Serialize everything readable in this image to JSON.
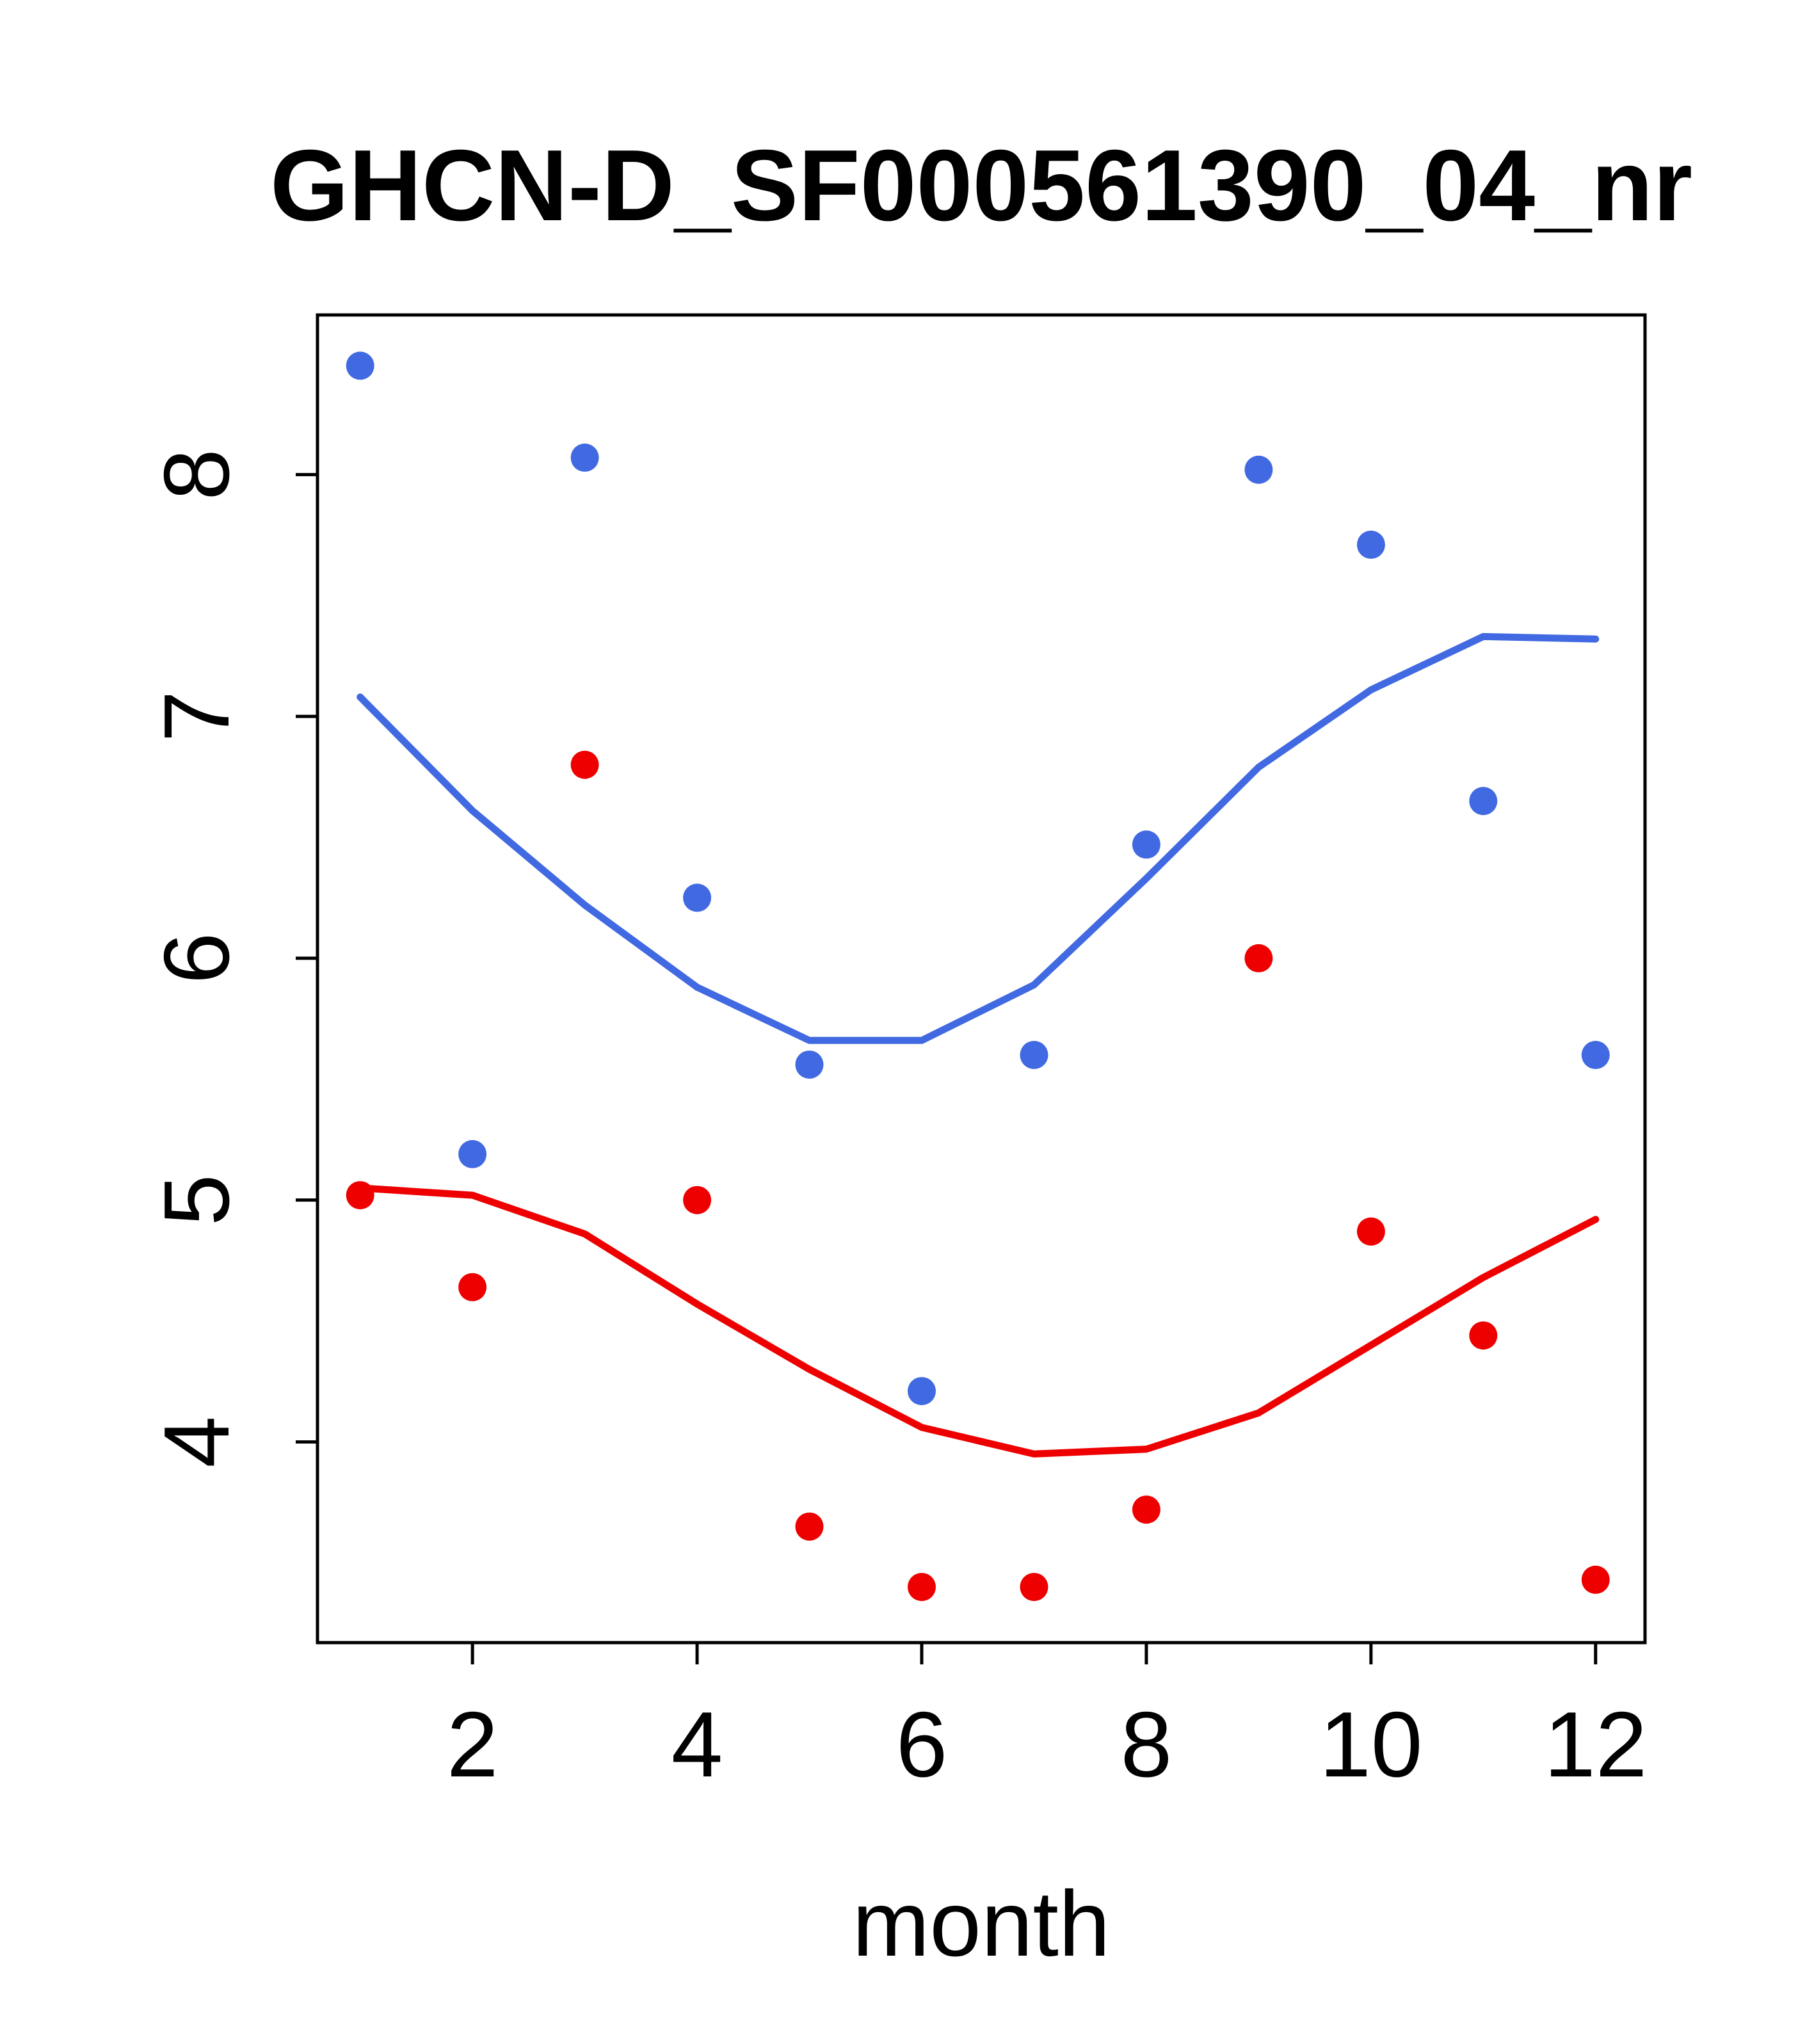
{
  "chart_data": {
    "type": "scatter",
    "title": "GHCN-D_SF000561390_04_nr",
    "xlabel": "month",
    "ylabel": "",
    "grid": false,
    "legend": "none",
    "x": [
      1,
      2,
      3,
      4,
      5,
      6,
      7,
      8,
      9,
      10,
      11,
      12
    ],
    "xlim": [
      0.62,
      12.44
    ],
    "ylim": [
      3.17,
      8.66
    ],
    "xticks": [
      2,
      4,
      6,
      8,
      10,
      12
    ],
    "yticks": [
      4,
      5,
      6,
      7,
      8
    ],
    "colors": {
      "blue": "#4169E1",
      "red": "#EE0000",
      "axis": "#000000",
      "background": "#FFFFFF"
    },
    "series": [
      {
        "name": "blue-points",
        "type": "points",
        "color": "#4169E1",
        "values": [
          8.45,
          5.19,
          8.07,
          6.25,
          5.56,
          4.21,
          5.6,
          6.47,
          8.02,
          7.71,
          6.65,
          5.6
        ]
      },
      {
        "name": "red-points",
        "type": "points",
        "color": "#EE0000",
        "values": [
          5.02,
          4.64,
          6.8,
          5.0,
          3.65,
          3.4,
          3.4,
          3.72,
          6.0,
          4.87,
          4.44,
          3.43
        ]
      },
      {
        "name": "blue-smooth-line",
        "type": "line",
        "color": "#4169E1",
        "values": [
          7.08,
          6.61,
          6.22,
          5.88,
          5.66,
          5.66,
          5.89,
          6.33,
          6.79,
          7.11,
          7.33,
          7.32
        ]
      },
      {
        "name": "red-smooth-line",
        "type": "line",
        "color": "#EE0000",
        "values": [
          5.05,
          5.02,
          4.86,
          4.57,
          4.3,
          4.06,
          3.95,
          3.97,
          4.12,
          4.4,
          4.68,
          4.92
        ]
      }
    ]
  }
}
